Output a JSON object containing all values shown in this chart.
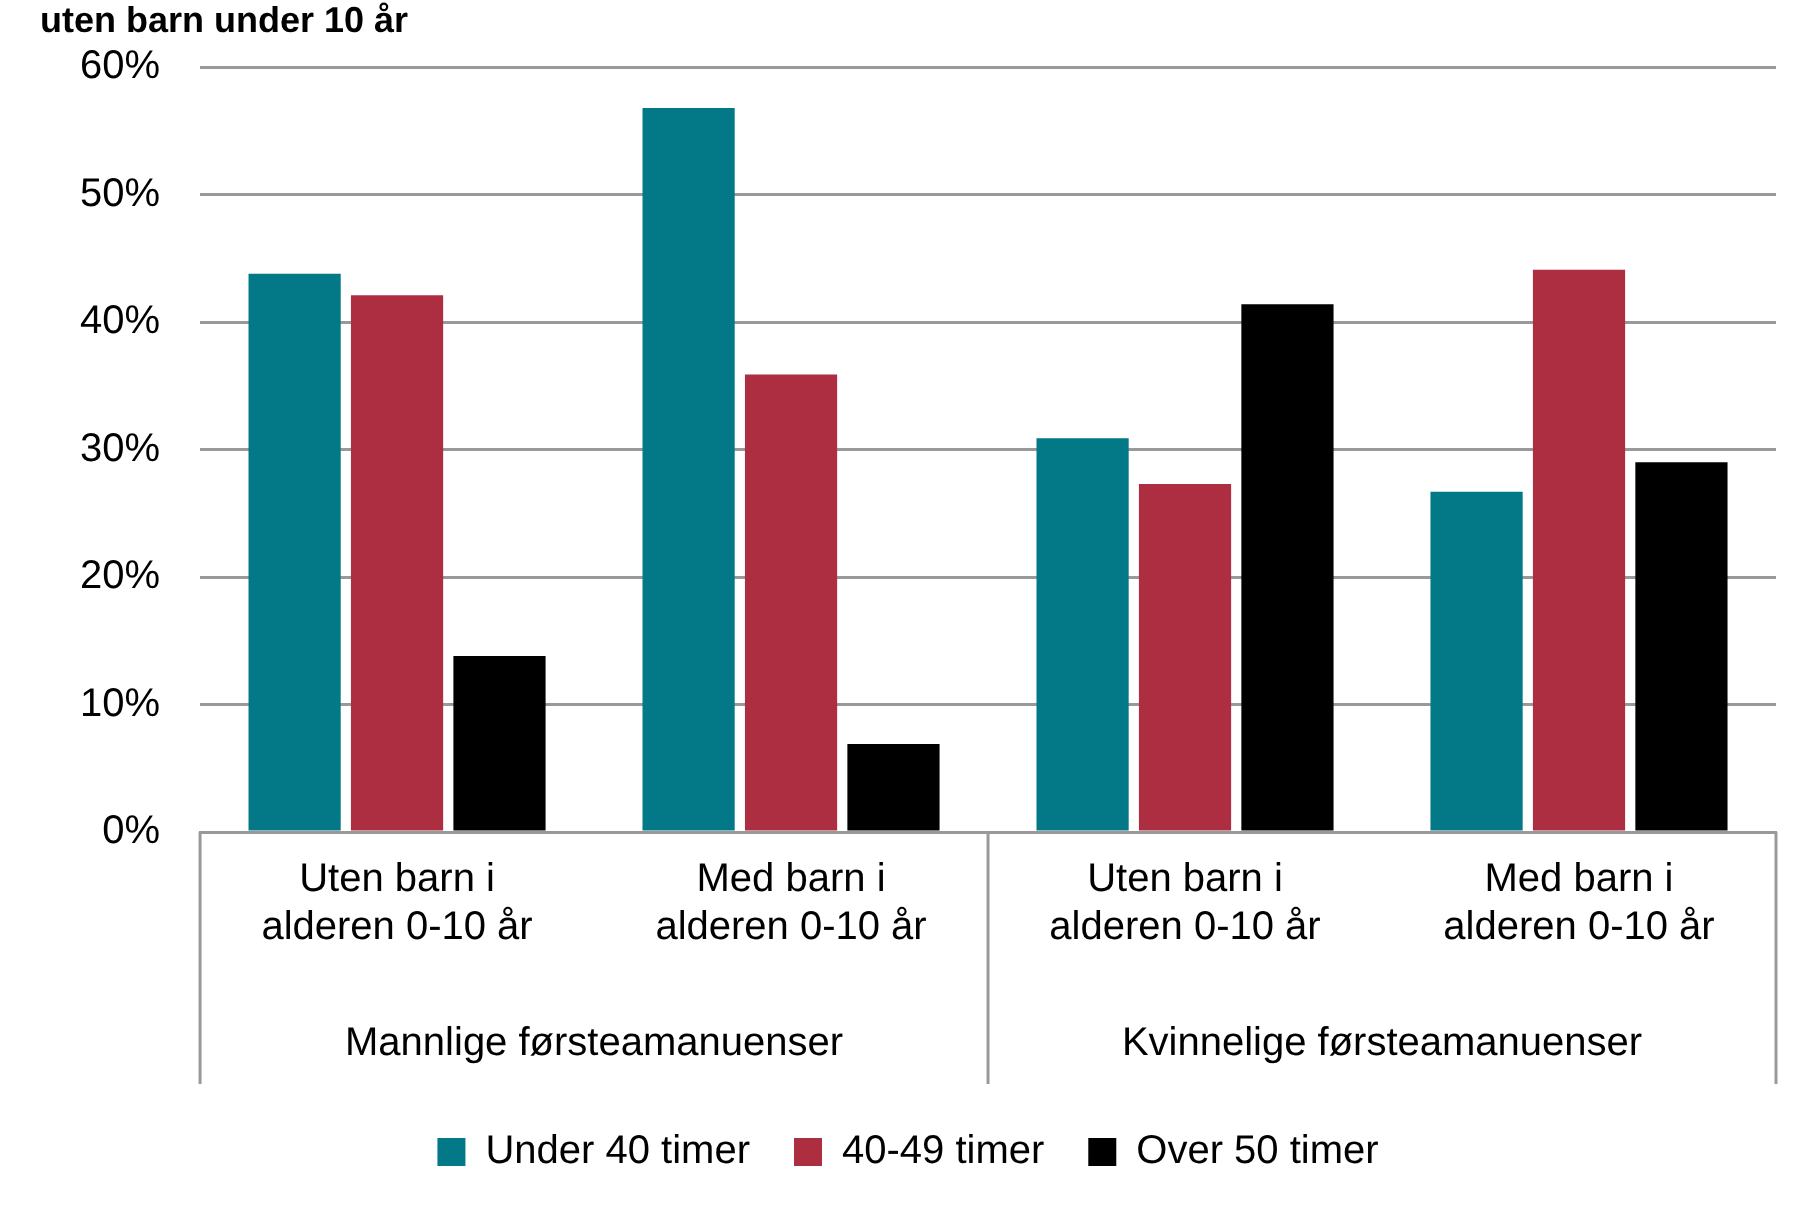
{
  "chart_data": {
    "type": "bar",
    "title": "uten barn under 10 år",
    "categories": [
      "Uten barn i alderen 0-10 år",
      "Med barn i alderen 0-10 år",
      "Uten barn i alderen 0-10 år",
      "Med barn i alderen 0-10 år"
    ],
    "series": [
      {
        "name": "Under 40 timer",
        "color": "#037887",
        "values": [
          43.8,
          56.8,
          30.9,
          26.7
        ]
      },
      {
        "name": "40-49 timer",
        "color": "#ad2e41",
        "values": [
          42.1,
          35.9,
          27.3,
          44.1
        ]
      },
      {
        "name": "Over 50 timer",
        "color": "#000000",
        "values": [
          13.8,
          6.9,
          41.4,
          29.0
        ]
      }
    ],
    "annotations": [
      "Mannlige førsteamanuenser",
      "Kvinnelige førsteamanuenser"
    ],
    "ylim": [
      0,
      60
    ],
    "yticks": [
      {
        "value": 0,
        "label": "0%"
      },
      {
        "value": 10,
        "label": "10%"
      },
      {
        "value": 20,
        "label": "20%"
      },
      {
        "value": 30,
        "label": "30%"
      },
      {
        "value": 40,
        "label": "40%"
      },
      {
        "value": 50,
        "label": "50%"
      },
      {
        "value": 60,
        "label": "60%"
      }
    ],
    "grid": "y",
    "legend": "bottom"
  }
}
